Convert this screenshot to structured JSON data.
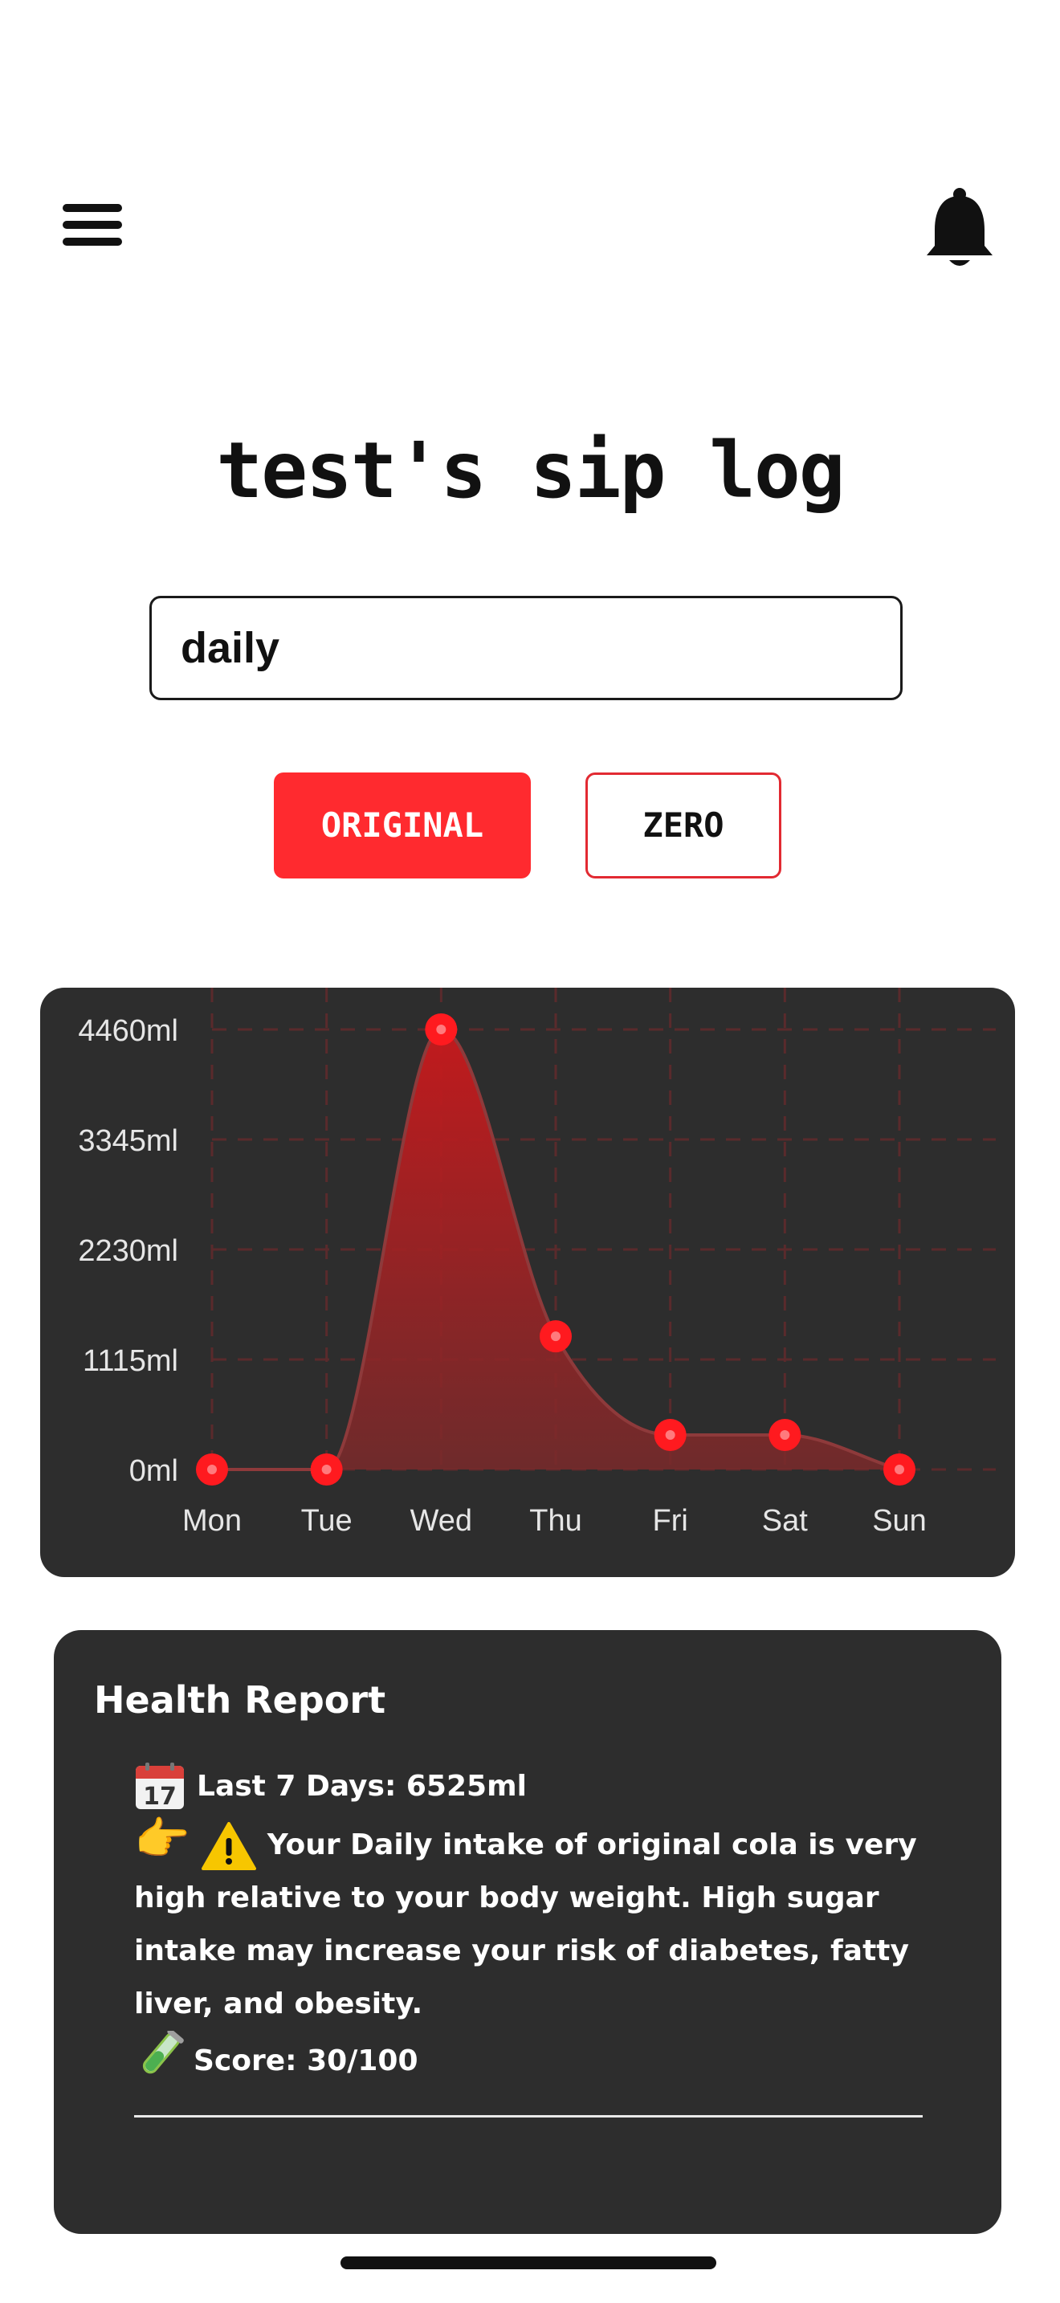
{
  "header": {
    "menu_icon": "hamburger-menu-icon",
    "bell_icon": "bell-icon"
  },
  "page": {
    "title": "test's sip log"
  },
  "period_select": {
    "value": "daily"
  },
  "toggle": {
    "original_label": "ORIGINAL",
    "zero_label": "ZERO",
    "active": "ORIGINAL"
  },
  "colors": {
    "accent": "#ff2a2f",
    "card_bg": "#2d2d2d",
    "series": "#ff1a1f"
  },
  "chart_data": {
    "type": "area",
    "title": "",
    "xlabel": "",
    "ylabel": "",
    "categories": [
      "Mon",
      "Tue",
      "Wed",
      "Thu",
      "Fri",
      "Sat",
      "Sun"
    ],
    "values": [
      0,
      0,
      4460,
      1350,
      350,
      350,
      0
    ],
    "ylim": [
      0,
      4460
    ],
    "y_ticks": [
      "0ml",
      "1115ml",
      "2230ml",
      "3345ml",
      "4460ml"
    ],
    "y_tick_values": [
      0,
      1115,
      2230,
      3345,
      4460
    ],
    "grid": true,
    "smooth": true
  },
  "report": {
    "title": "Health Report",
    "calendar_icon": "calendar-icon",
    "last7": "Last 7 Days: 6525ml",
    "pointing_icon": "pointing-hand-icon",
    "warning_icon": "warning-icon",
    "warning_text": "Your Daily intake of original cola is very high relative to your body weight. High sugar intake may increase your risk of diabetes, fatty liver, and obesity.",
    "test_tube_icon": "test-tube-icon",
    "score": "Score: 30/100"
  }
}
